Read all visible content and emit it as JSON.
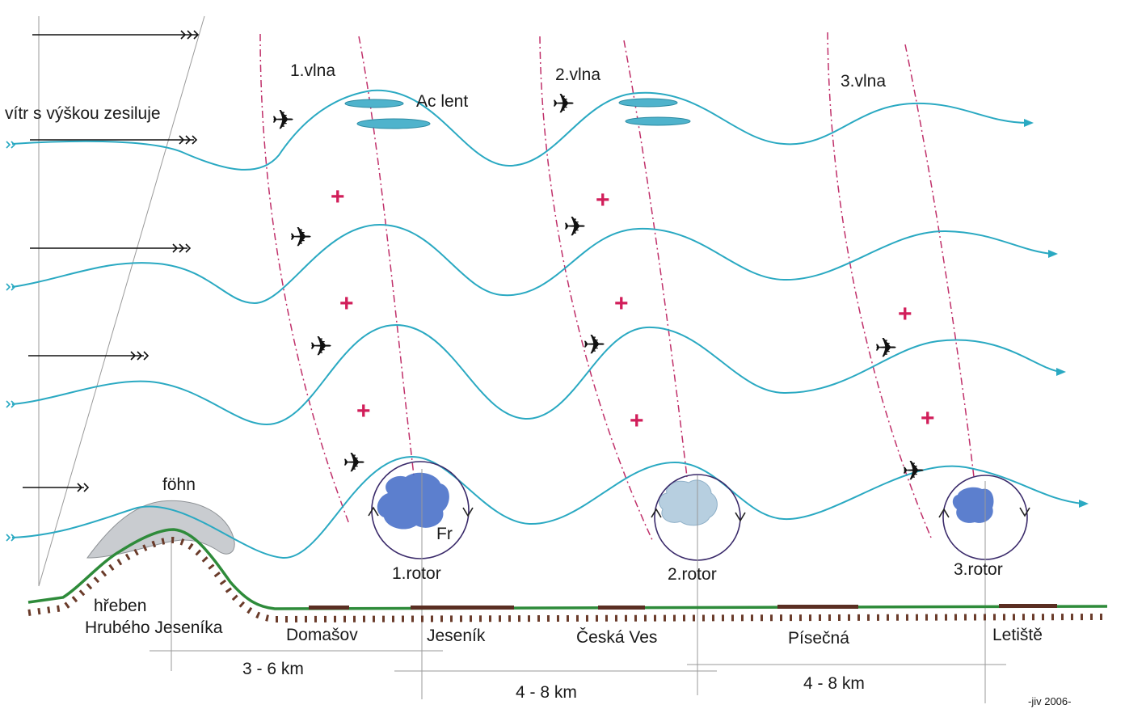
{
  "colors": {
    "streamline": "#2aa9c2",
    "wave_axis": "#c0306a",
    "plus": "#d11e5a",
    "ground": "#2e8b3a",
    "ground_ticks": "#6a3b2a",
    "cloud": "#4fb3cc",
    "rotor_ring": "#3a2a6a",
    "rotor_cloud": "#3f69c6",
    "fohn_cloud": "#c9ccd0"
  },
  "labels": {
    "wind_text": "vítr s výškou zesiluje",
    "wave1": "1.vlna",
    "wave2": "2.vlna",
    "wave3": "3.vlna",
    "ac_lent": "Ac lent",
    "fohn": "föhn",
    "fr": "Fr",
    "rotor1": "1.rotor",
    "rotor2": "2.rotor",
    "rotor3": "3.rotor",
    "ridge_line1": "hřeben",
    "ridge_line2": "Hrubého  Jeseníka",
    "place_domasov": "Domašov",
    "place_jesenik": "Jeseník",
    "place_ceska_ves": "Česká Ves",
    "place_pisecna": "Písečná",
    "place_letiste": "Letiště",
    "dist1": "3 - 6 km",
    "dist2": "4 - 8 km",
    "dist3": "4 - 8 km",
    "credit": "-jiv 2006-",
    "plus_symbol": "+",
    "glider_symbol": "✈"
  }
}
